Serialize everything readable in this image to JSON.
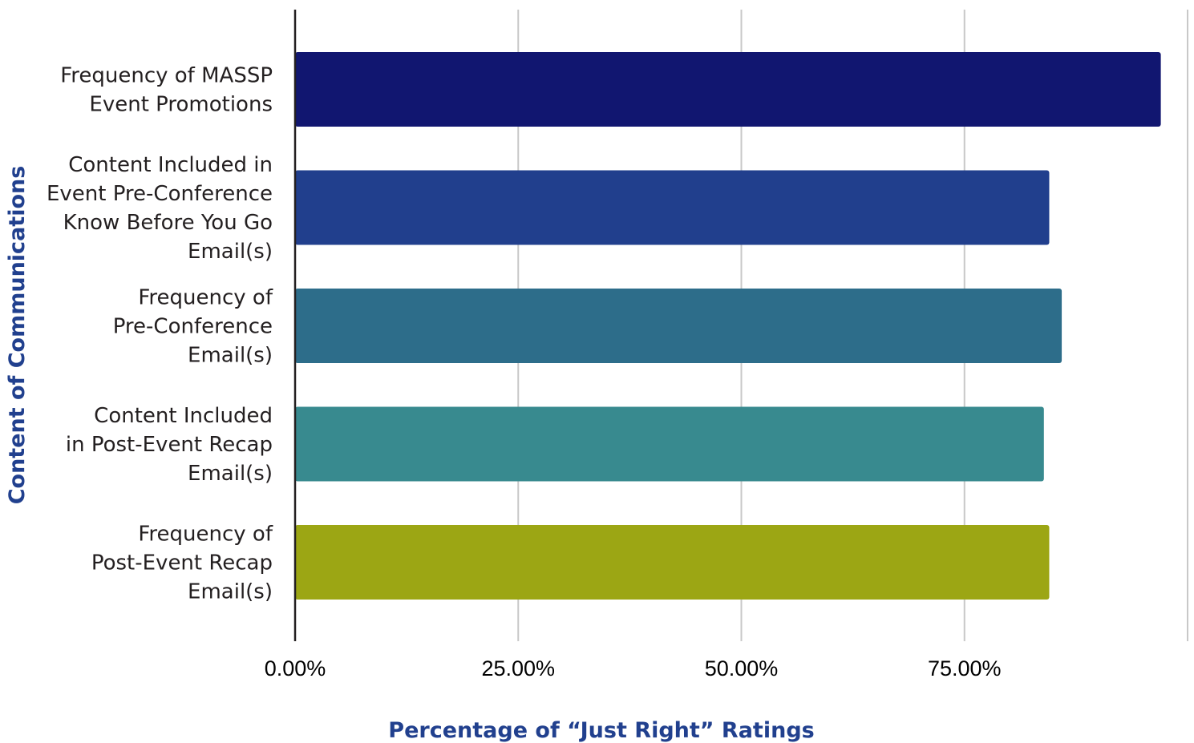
{
  "chart_data": {
    "type": "bar",
    "orientation": "horizontal",
    "categories": [
      [
        "Frequency of MASSP",
        "Event Promotions"
      ],
      [
        "Content Included in",
        "Event Pre-Conference",
        "Know Before You Go",
        "Email(s)"
      ],
      [
        "Frequency of",
        "Pre-Conference",
        "Email(s)"
      ],
      [
        "Content Included",
        "in Post-Event Recap",
        "Email(s)"
      ],
      [
        "Frequency of",
        "Post-Event Recap",
        "Email(s)"
      ]
    ],
    "values": [
      97.0,
      84.5,
      85.9,
      83.9,
      84.5
    ],
    "bar_colors": [
      "#111670",
      "#213f8d",
      "#2d6d8a",
      "#388a8f",
      "#9ca614"
    ],
    "xlim": [
      0,
      100
    ],
    "x_ticks": [
      0,
      25,
      50,
      75
    ],
    "x_tick_labels": [
      "0.00%",
      "25.00%",
      "50.00%",
      "75.00%"
    ],
    "xlabel": "Percentage of “Just Right” Ratings",
    "ylabel": "Content of Communications",
    "axis_title_color": "#21408e",
    "grid": true,
    "gridline_color": "#c8c8c8",
    "axis_line_color": "#231f20"
  }
}
